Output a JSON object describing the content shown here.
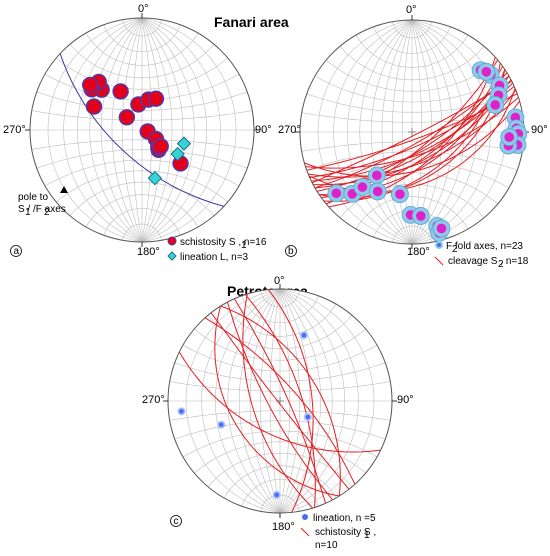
{
  "colors": {
    "net": "#b9b9b9",
    "outline": "#555555",
    "schistosity_fill": "#e3001b",
    "schistosity_edge": "#4b3bb0",
    "lineation_fill": "#35d3d6",
    "lineation_edge": "#1b6f8c",
    "fold_outer": "#8ec9ea",
    "fold_inner": "#e020c8",
    "great_circle": "#e31e24",
    "lineation_dot": "#4a6cf2"
  },
  "titles": {
    "fanari": "Fanari area",
    "petrota": "Petrota area"
  },
  "panels": [
    {
      "id": "a",
      "label": "a",
      "directions": {
        "north": "0°",
        "east": "90°",
        "south": "180°",
        "west": "270°"
      },
      "pole_label": {
        "line1": "pole to",
        "line2": "S / /F axes",
        "sub1": "1",
        "sub2": "2"
      },
      "legend": [
        {
          "symbol": "schistosity-circle",
          "text": "schistosity S , n=16",
          "sub": "1"
        },
        {
          "symbol": "lineation-diamond",
          "text": "lineation L, n=3",
          "sub": ""
        }
      ],
      "pole_point": {
        "trend": 243,
        "plunge": 18
      },
      "girdle": {
        "dip_direction": 223,
        "dip": 62
      },
      "schistosity_poles": [
        {
          "trend": 352,
          "plunge": 64
        },
        {
          "trend": 315,
          "plunge": 36
        },
        {
          "trend": 318,
          "plunge": 30
        },
        {
          "trend": 309,
          "plunge": 30
        },
        {
          "trend": 311,
          "plunge": 27
        },
        {
          "trend": 331,
          "plunge": 47
        },
        {
          "trend": 12,
          "plunge": 59
        },
        {
          "trend": 24,
          "plunge": 56
        },
        {
          "trend": 296,
          "plunge": 39
        },
        {
          "trend": 310,
          "plunge": 70
        },
        {
          "trend": 104,
          "plunge": 84
        },
        {
          "trend": 123,
          "plunge": 73
        },
        {
          "trend": 140,
          "plunge": 64
        },
        {
          "trend": 137,
          "plunge": 66
        },
        {
          "trend": 131,
          "plunge": 65
        },
        {
          "trend": 131,
          "plunge": 41
        }
      ],
      "lineations": [
        {
          "trend": 108,
          "plunge": 47
        },
        {
          "trend": 124,
          "plunge": 48
        },
        {
          "trend": 165,
          "plunge": 42
        }
      ]
    },
    {
      "id": "b",
      "label": "b",
      "directions": {
        "north": "0°",
        "east": "90°",
        "south": "180°",
        "west": "270°"
      },
      "legend": [
        {
          "symbol": "fold-axis",
          "text": "F  fold axes, n=23",
          "sub": "2"
        },
        {
          "symbol": "cleavage-line",
          "text": "cleavage S , n=18",
          "sub": "2"
        }
      ],
      "fold_axes": [
        {
          "trend": 48,
          "plunge": 11
        },
        {
          "trend": 54,
          "plunge": 8
        },
        {
          "trend": 51,
          "plunge": 9
        },
        {
          "trend": 62,
          "plunge": 7
        },
        {
          "trend": 67,
          "plunge": 10
        },
        {
          "trend": 72,
          "plunge": 14
        },
        {
          "trend": 82,
          "plunge": 4
        },
        {
          "trend": 88,
          "plunge": 4
        },
        {
          "trend": 91,
          "plunge": 3
        },
        {
          "trend": 97,
          "plunge": 3
        },
        {
          "trend": 98,
          "plunge": 8
        },
        {
          "trend": 93,
          "plunge": 8
        },
        {
          "trend": 231,
          "plunge": 8
        },
        {
          "trend": 224,
          "plunge": 15
        },
        {
          "trend": 222,
          "plunge": 23
        },
        {
          "trend": 219,
          "plunge": 37
        },
        {
          "trend": 210,
          "plunge": 27
        },
        {
          "trend": 191,
          "plunge": 31
        },
        {
          "trend": 181,
          "plunge": 17
        },
        {
          "trend": 174,
          "plunge": 16
        },
        {
          "trend": 165,
          "plunge": 8
        },
        {
          "trend": 165,
          "plunge": 4
        },
        {
          "trend": 163,
          "plunge": 6
        }
      ],
      "cleavage_planes": [
        {
          "dip_direction": 148,
          "dip": 70
        },
        {
          "dip_direction": 150,
          "dip": 65
        },
        {
          "dip_direction": 152,
          "dip": 60
        },
        {
          "dip_direction": 146,
          "dip": 55
        },
        {
          "dip_direction": 156,
          "dip": 75
        },
        {
          "dip_direction": 160,
          "dip": 82
        },
        {
          "dip_direction": 142,
          "dip": 48
        },
        {
          "dip_direction": 144,
          "dip": 62
        },
        {
          "dip_direction": 154,
          "dip": 68
        },
        {
          "dip_direction": 158,
          "dip": 58
        },
        {
          "dip_direction": 162,
          "dip": 66
        },
        {
          "dip_direction": 140,
          "dip": 72
        },
        {
          "dip_direction": 150,
          "dip": 78
        },
        {
          "dip_direction": 164,
          "dip": 52
        },
        {
          "dip_direction": 138,
          "dip": 58
        },
        {
          "dip_direction": 153,
          "dip": 86
        },
        {
          "dip_direction": 146,
          "dip": 45
        },
        {
          "dip_direction": 157,
          "dip": 40
        }
      ]
    },
    {
      "id": "c",
      "label": "c",
      "directions": {
        "north": "0°",
        "east": "90°",
        "south": "180°",
        "west": "270°"
      },
      "legend": [
        {
          "symbol": "lineation-dot",
          "text": "lineation, n =5",
          "sub": ""
        },
        {
          "symbol": "schistosity-line",
          "text": "schistosity S , ",
          "sub": "1",
          "text2": "n=10"
        }
      ],
      "lineations": [
        {
          "trend": 20,
          "plunge": 26
        },
        {
          "trend": 248,
          "plunge": 31
        },
        {
          "trend": 264,
          "plunge": 7
        },
        {
          "trend": 120,
          "plunge": 58
        },
        {
          "trend": 182,
          "plunge": 10
        }
      ],
      "schistosity_planes": [
        {
          "dip_direction": 58,
          "dip": 52
        },
        {
          "dip_direction": 238,
          "dip": 42
        },
        {
          "dip_direction": 253,
          "dip": 62
        },
        {
          "dip_direction": 242,
          "dip": 78
        },
        {
          "dip_direction": 72,
          "dip": 68
        },
        {
          "dip_direction": 66,
          "dip": 82
        },
        {
          "dip_direction": 48,
          "dip": 73
        },
        {
          "dip_direction": 206,
          "dip": 56
        },
        {
          "dip_direction": 232,
          "dip": 88
        },
        {
          "dip_direction": 84,
          "dip": 58
        }
      ]
    }
  ]
}
